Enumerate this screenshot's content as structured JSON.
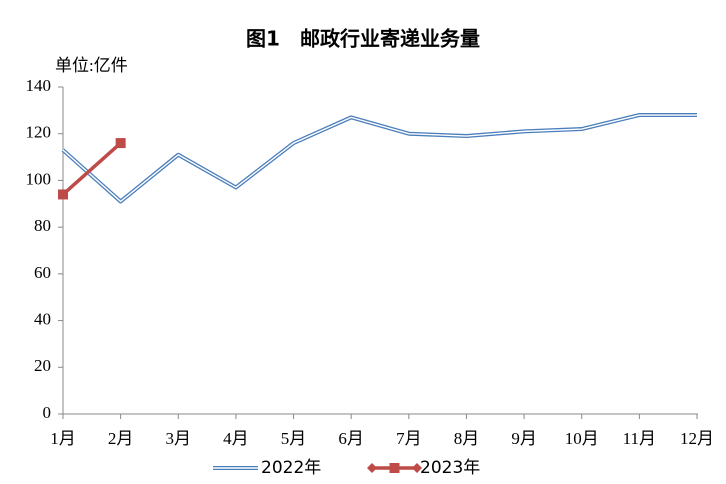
{
  "chart_data": {
    "type": "line",
    "title": "图1　邮政行业寄递业务量",
    "y_unit": "单位:亿件",
    "categories": [
      "1月",
      "2月",
      "3月",
      "4月",
      "5月",
      "6月",
      "7月",
      "8月",
      "9月",
      "10月",
      "11月",
      "12月"
    ],
    "series": [
      {
        "name": "2022年",
        "color": "#4a7ebb",
        "values": [
          113,
          91,
          111,
          97,
          116,
          127,
          120,
          119,
          121,
          122,
          128,
          128
        ]
      },
      {
        "name": "2023年",
        "color": "#be4b48",
        "values": [
          94,
          116,
          null,
          null,
          null,
          null,
          null,
          null,
          null,
          null,
          null,
          null
        ]
      }
    ],
    "ylim": [
      0,
      140
    ],
    "yticks": [
      0,
      20,
      40,
      60,
      80,
      100,
      120,
      140
    ],
    "grid": false
  }
}
